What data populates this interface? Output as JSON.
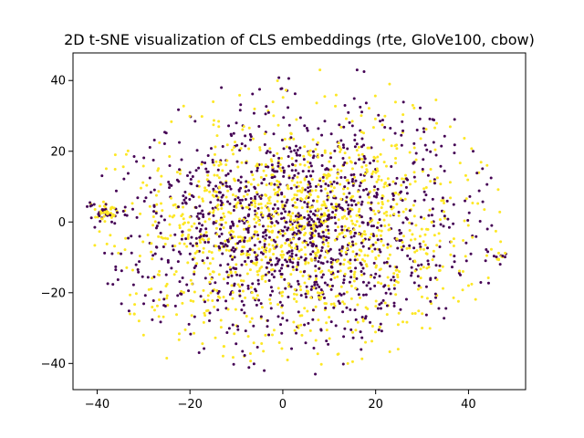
{
  "chart_data": {
    "type": "scatter",
    "title": "2D t-SNE visualization of CLS embeddings (rte, GloVe100, cbow)",
    "xlabel": "",
    "ylabel": "",
    "xlim": [
      -45.2,
      52.3
    ],
    "ylim": [
      -47.4,
      47.8
    ],
    "x_ticks": [
      -40,
      -20,
      0,
      20,
      40
    ],
    "y_ticks": [
      -40,
      -20,
      0,
      20,
      40
    ],
    "x_tick_labels": [
      "−40",
      "−20",
      "0",
      "20",
      "40"
    ],
    "y_tick_labels": [
      "−40",
      "−20",
      "0",
      "20",
      "40"
    ],
    "grid": false,
    "legend": "none",
    "colors": {
      "class_0": "#440154",
      "class_1": "#fde725"
    },
    "distribution": {
      "n_per_class": 1250,
      "x_range": [
        -41,
        47
      ],
      "y_range": [
        -43,
        43
      ],
      "note_cluster_right": {
        "x": 47,
        "y": -10
      }
    },
    "sample_points": [
      {
        "x": -40.5,
        "y": -1.5,
        "cls": 0
      },
      {
        "x": -38.5,
        "y": 3.5,
        "cls": 0
      },
      {
        "x": -38,
        "y": 2,
        "cls": 1
      },
      {
        "x": -37,
        "y": 4,
        "cls": 1
      },
      {
        "x": -36,
        "y": -13.5,
        "cls": 0
      },
      {
        "x": -34,
        "y": 2,
        "cls": 0
      },
      {
        "x": -32,
        "y": -26,
        "cls": 1
      },
      {
        "x": -30,
        "y": -32,
        "cls": 1
      },
      {
        "x": -25,
        "y": -38.5,
        "cls": 1
      },
      {
        "x": -20,
        "y": 14,
        "cls": 0
      },
      {
        "x": -15,
        "y": 34,
        "cls": 1
      },
      {
        "x": -10,
        "y": 28,
        "cls": 0
      },
      {
        "x": -5,
        "y": 37.5,
        "cls": 0
      },
      {
        "x": -4,
        "y": -42,
        "cls": 0
      },
      {
        "x": 1,
        "y": -39,
        "cls": 1
      },
      {
        "x": 7,
        "y": -43,
        "cls": 0
      },
      {
        "x": 8,
        "y": 43,
        "cls": 1
      },
      {
        "x": 14,
        "y": -40,
        "cls": 1
      },
      {
        "x": 16,
        "y": 43,
        "cls": 0
      },
      {
        "x": 17.5,
        "y": 42.5,
        "cls": 0
      },
      {
        "x": 23,
        "y": 39,
        "cls": 1
      },
      {
        "x": 28,
        "y": 33,
        "cls": 1
      },
      {
        "x": 30,
        "y": -30,
        "cls": 1
      },
      {
        "x": 33,
        "y": 34.5,
        "cls": 1
      },
      {
        "x": 37,
        "y": 29,
        "cls": 0
      },
      {
        "x": 40,
        "y": -18,
        "cls": 1
      },
      {
        "x": 41,
        "y": 20,
        "cls": 0
      },
      {
        "x": 44,
        "y": 16,
        "cls": 1
      },
      {
        "x": 45,
        "y": -1,
        "cls": 0
      },
      {
        "x": 47,
        "y": -9.5,
        "cls": 0
      },
      {
        "x": 46.5,
        "y": -10.5,
        "cls": 1
      }
    ]
  }
}
